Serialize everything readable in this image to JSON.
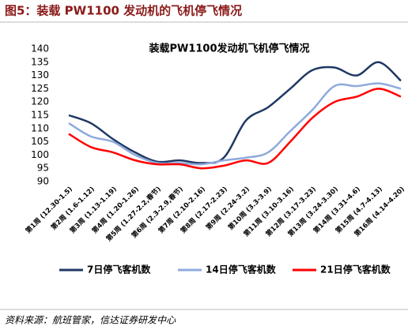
{
  "header": "图5：装载 PW1100 发动机的飞机停飞情况",
  "chart_data": {
    "type": "line",
    "title": "装载PW1100发动机飞机停飞情况",
    "categories": [
      "第1周 (12.30-1.5)",
      "第2周 (1.6-1.12)",
      "第3周 (1.13-1.19)",
      "第4周 (1.20-1.26)",
      "第5周 (1.27-2.2,春节)",
      "第6周 (2.3-2.9,春节)",
      "第7周 (2.10-2.16)",
      "第8周 (2.17-2.23)",
      "第9周 (2.24-3.2)",
      "第10周 (3.3-3.9)",
      "第11周 (3.10-3.16)",
      "第12周 (3.17-3.23)",
      "第13周 (3.24-3.30)",
      "第14周 (3.31-4.6)",
      "第15周 (4.7-4.13)",
      "第16周 (4.14-4.20)"
    ],
    "series": [
      {
        "name": "7日停飞客机数",
        "color": "#1f3864",
        "values": [
          115,
          112,
          106,
          101,
          97.5,
          98,
          97,
          99,
          113,
          118,
          125,
          132,
          133,
          130,
          135,
          128
        ]
      },
      {
        "name": "14日停飞客机数",
        "color": "#8faadc",
        "values": [
          112,
          107,
          105,
          100,
          97,
          97,
          96.5,
          98,
          99,
          101,
          109,
          117,
          126,
          126,
          127,
          125
        ]
      },
      {
        "name": "21日停飞客机数",
        "color": "#ff0000",
        "values": [
          108,
          103,
          101,
          98,
          96.5,
          96.5,
          95,
          96,
          98,
          97,
          105,
          114,
          120,
          122,
          125,
          122
        ]
      }
    ],
    "ylim": [
      90,
      140
    ],
    "yticks": [
      90,
      95,
      100,
      105,
      110,
      115,
      120,
      125,
      130,
      135,
      140
    ]
  },
  "source": "资料来源：航班管家，信达证券研发中心"
}
